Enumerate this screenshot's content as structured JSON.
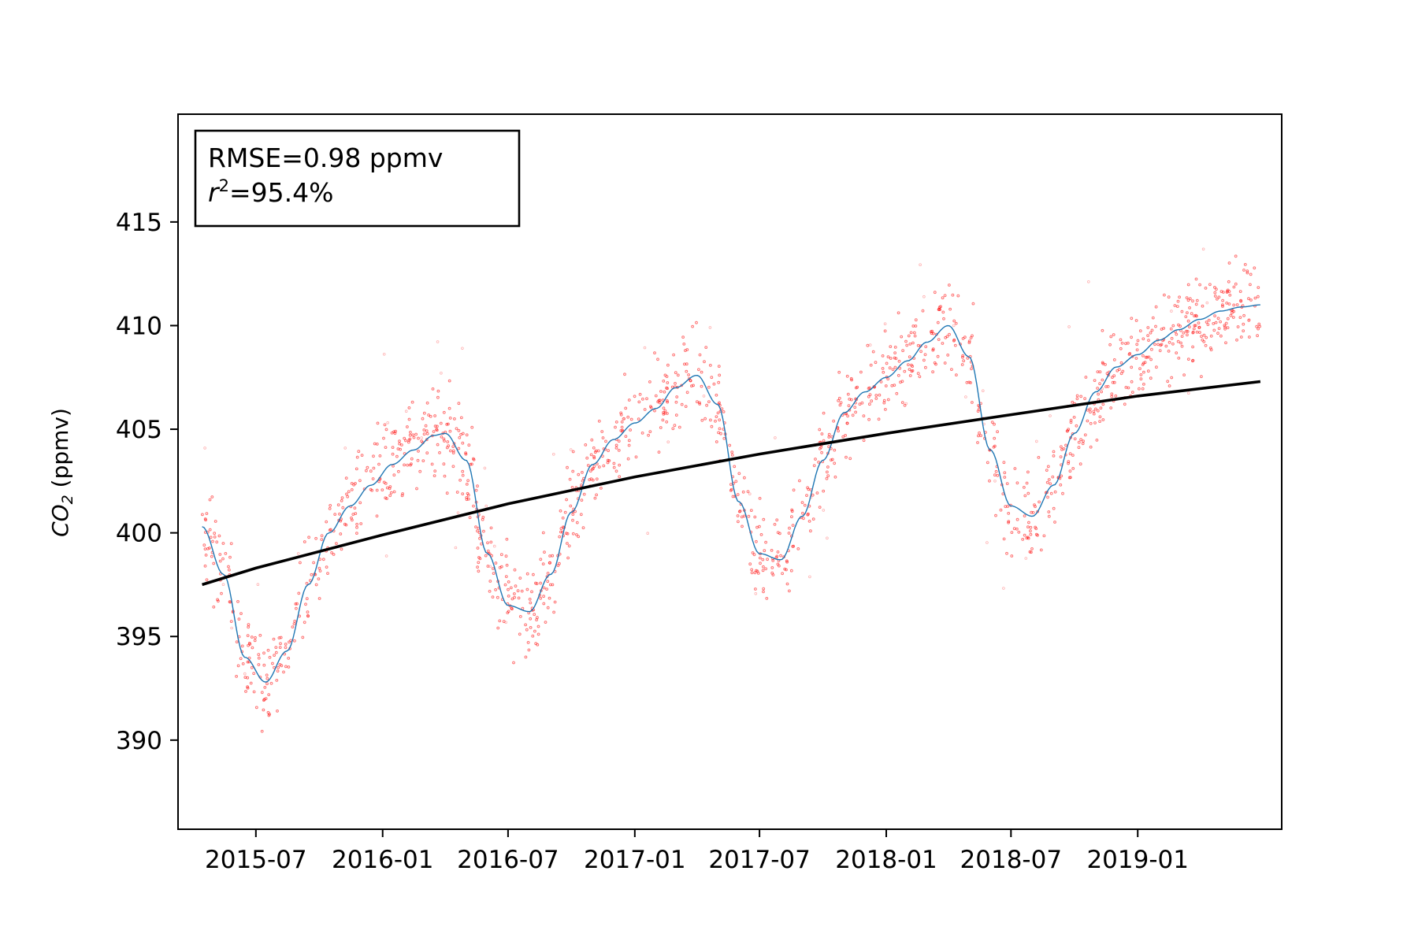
{
  "chart_data": {
    "type": "scatter",
    "ylabel": "CO2 (ppmv)",
    "ylabel_parts": {
      "main": "CO",
      "subscript": "2",
      "units": " (ppmv)"
    },
    "xlim": [
      "2015-03-10",
      "2019-07-29"
    ],
    "ylim": [
      385.7,
      420.2
    ],
    "y_ticks": [
      390,
      395,
      400,
      405,
      410,
      415
    ],
    "x_tick_labels": [
      "2015-07",
      "2016-01",
      "2016-07",
      "2017-01",
      "2017-07",
      "2018-01",
      "2018-07",
      "2019-01"
    ],
    "x_tick_dates": [
      "2015-07-01",
      "2016-01-01",
      "2016-07-01",
      "2017-01-01",
      "2017-07-01",
      "2018-01-01",
      "2018-07-01",
      "2019-01-01"
    ],
    "grid": false,
    "stats_box": {
      "position": "top-left",
      "rmse_text": "RMSE=0.98 ppmv",
      "r2_symbol": "r",
      "r2_sup": "2",
      "r2_value": "=95.4%"
    },
    "series": [
      {
        "kind": "scatter",
        "color": "#ff0000",
        "x_start": "2015-04-14",
        "x_end": "2019-06-28",
        "seasonal_curve": [
          [
            "2015-04-14",
            400.3
          ],
          [
            "2015-05-15",
            398.0
          ],
          [
            "2015-06-15",
            394.0
          ],
          [
            "2015-07-15",
            392.8
          ],
          [
            "2015-08-15",
            394.3
          ],
          [
            "2015-09-15",
            397.5
          ],
          [
            "2015-10-15",
            400.0
          ],
          [
            "2015-11-15",
            401.3
          ],
          [
            "2015-12-15",
            402.3
          ],
          [
            "2016-01-15",
            403.3
          ],
          [
            "2016-02-15",
            404.0
          ],
          [
            "2016-03-15",
            404.7
          ],
          [
            "2016-04-01",
            404.8
          ],
          [
            "2016-05-01",
            403.5
          ],
          [
            "2016-06-01",
            399.0
          ],
          [
            "2016-07-01",
            396.5
          ],
          [
            "2016-08-01",
            396.2
          ],
          [
            "2016-09-01",
            398.0
          ],
          [
            "2016-10-01",
            401.0
          ],
          [
            "2016-11-01",
            403.3
          ],
          [
            "2016-12-01",
            404.5
          ],
          [
            "2017-01-01",
            405.3
          ],
          [
            "2017-02-01",
            406.0
          ],
          [
            "2017-03-01",
            407.0
          ],
          [
            "2017-04-01",
            407.6
          ],
          [
            "2017-05-01",
            406.2
          ],
          [
            "2017-06-01",
            401.5
          ],
          [
            "2017-07-01",
            399.0
          ],
          [
            "2017-08-01",
            398.7
          ],
          [
            "2017-09-01",
            400.8
          ],
          [
            "2017-10-01",
            403.5
          ],
          [
            "2017-11-01",
            405.8
          ],
          [
            "2017-12-01",
            406.8
          ],
          [
            "2018-01-01",
            407.5
          ],
          [
            "2018-02-01",
            408.3
          ],
          [
            "2018-03-01",
            409.2
          ],
          [
            "2018-04-01",
            410.0
          ],
          [
            "2018-05-01",
            408.5
          ],
          [
            "2018-06-01",
            404.0
          ],
          [
            "2018-07-01",
            401.3
          ],
          [
            "2018-08-01",
            400.8
          ],
          [
            "2018-09-01",
            402.3
          ],
          [
            "2018-10-01",
            404.8
          ],
          [
            "2018-11-01",
            406.8
          ],
          [
            "2018-12-01",
            408.0
          ],
          [
            "2019-01-01",
            408.6
          ],
          [
            "2019-02-01",
            409.3
          ],
          [
            "2019-03-01",
            409.8
          ],
          [
            "2019-04-01",
            410.3
          ],
          [
            "2019-05-01",
            410.7
          ],
          [
            "2019-06-01",
            410.9
          ],
          [
            "2019-06-28",
            411.0
          ]
        ],
        "scatter_spread_ppmv": 1.1
      },
      {
        "kind": "line",
        "color": "#1f77b4",
        "follows": "seasonal_curve"
      },
      {
        "kind": "line",
        "color": "#000000",
        "points": [
          [
            "2015-04-14",
            397.5
          ],
          [
            "2015-07-01",
            398.3
          ],
          [
            "2016-01-01",
            399.9
          ],
          [
            "2016-07-01",
            401.4
          ],
          [
            "2017-01-01",
            402.7
          ],
          [
            "2017-07-01",
            403.8
          ],
          [
            "2018-01-01",
            404.8
          ],
          [
            "2018-07-01",
            405.7
          ],
          [
            "2019-01-01",
            406.6
          ],
          [
            "2019-06-28",
            407.3
          ]
        ]
      }
    ]
  }
}
